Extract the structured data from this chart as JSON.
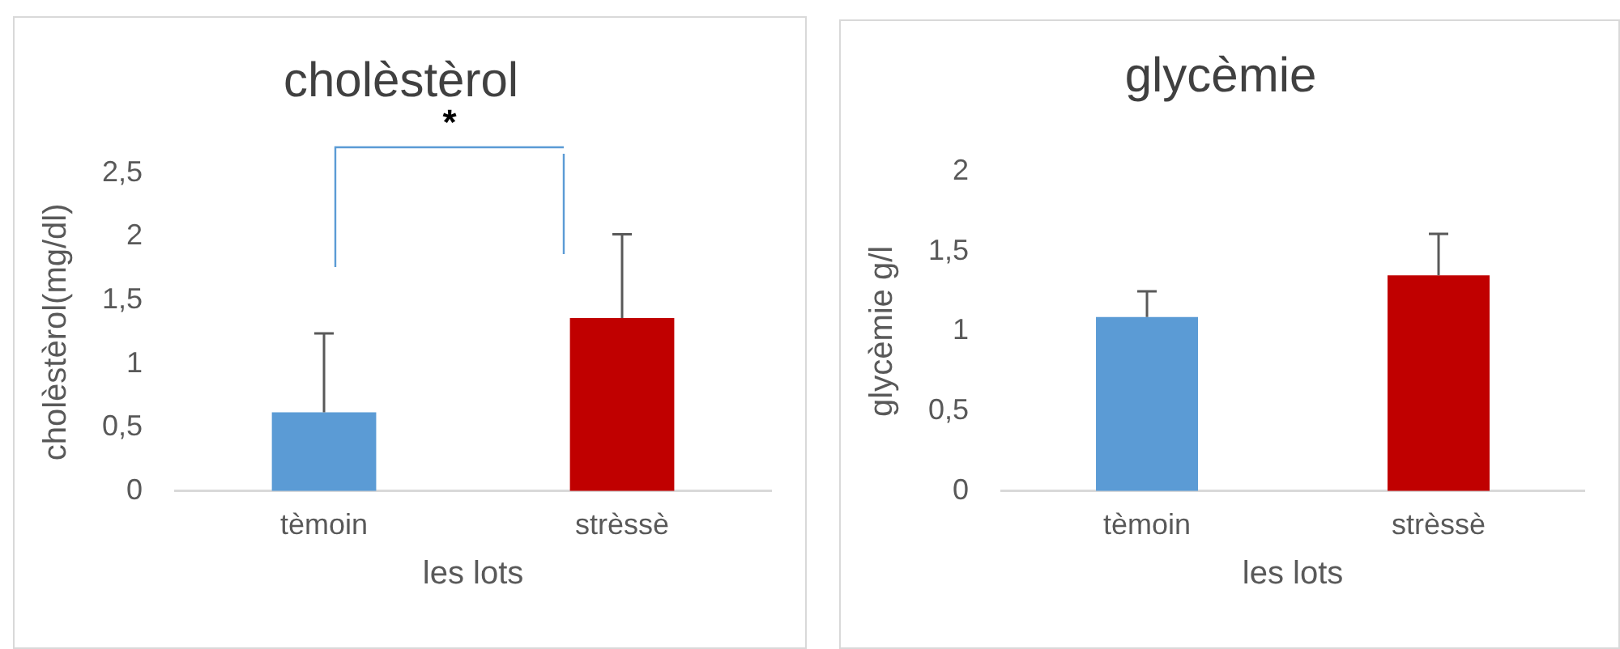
{
  "chart_data": [
    {
      "type": "bar",
      "title": "cholèstèrol",
      "xlabel": "les lots",
      "ylabel": "cholèstèrol(mg/dl)",
      "categories": [
        "tèmoin",
        "strèssè"
      ],
      "values": [
        0.62,
        1.36
      ],
      "colors": [
        "#5b9bd5",
        "#c00000"
      ],
      "errors": [
        [
          0.62,
          1.24
        ],
        [
          1.36,
          2.02
        ]
      ],
      "ylim": [
        0,
        2.5
      ],
      "yticks": [
        0,
        {
          "value": 0.5,
          "label": "0,5"
        },
        1,
        {
          "value": 1.5,
          "label": "1,5"
        },
        2,
        {
          "value": 2.5,
          "label": "2,5"
        }
      ],
      "grid": false,
      "annotations": [
        "*"
      ]
    },
    {
      "type": "bar",
      "title": "glycèmie",
      "xlabel": "les lots",
      "ylabel": "glycèmie g/l",
      "categories": [
        "tèmoin",
        "strèssè"
      ],
      "values": [
        1.09,
        1.35
      ],
      "colors": [
        "#5b9bd5",
        "#c00000"
      ],
      "errors": [
        [
          1.09,
          1.25
        ],
        [
          1.35,
          1.61
        ]
      ],
      "ylim": [
        0,
        2
      ],
      "yticks": [
        0,
        {
          "value": 0.5,
          "label": "0,5"
        },
        1,
        {
          "value": 1.5,
          "label": "1,5"
        },
        2
      ],
      "grid": false
    }
  ]
}
